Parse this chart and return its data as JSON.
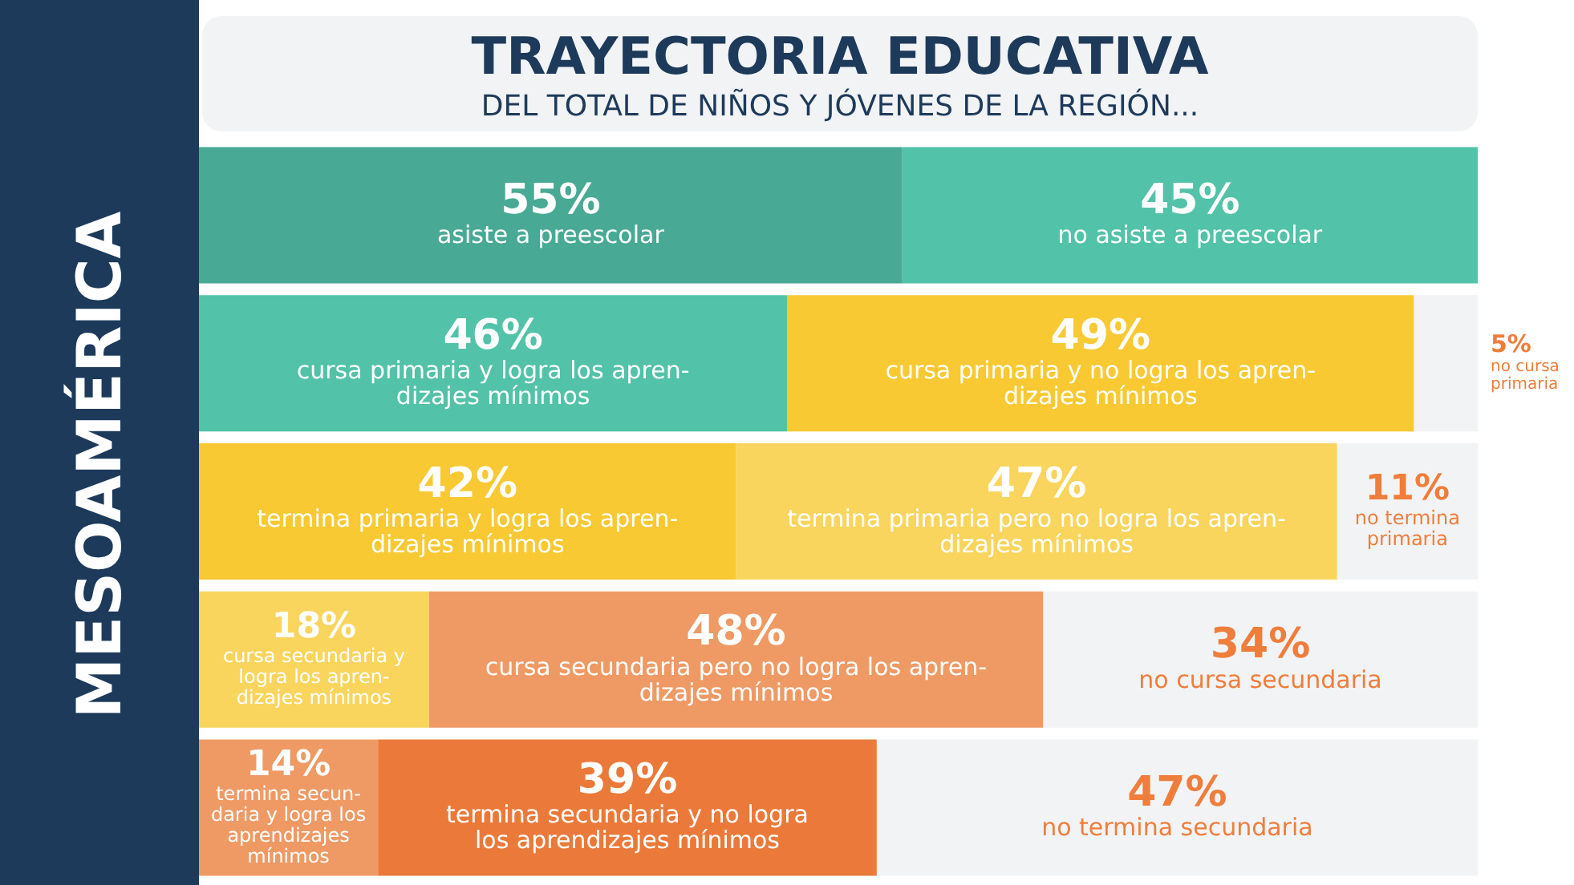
{
  "chart_data": {
    "type": "bar",
    "orientation": "horizontal",
    "stacked": true,
    "title": "TRAYECTORIA EDUCATIVA",
    "subtitle": "DEL TOTAL DE NIÑOS Y JÓVENES DE LA REGIÓN...",
    "ylabel": "MESOAMÉRICA",
    "categories": [
      null,
      null,
      null,
      null,
      null
    ],
    "legend": false,
    "tick_labels": false,
    "series": [
      {
        "colors": [
          "#48a994",
          "#52c2a8",
          "#f9c933",
          "#fad55e",
          "#ef9964"
        ],
        "values": [
          55,
          46,
          42,
          18,
          14
        ],
        "value_labels": [
          "55%\nasiste a preescolar",
          "46%\ncursa primaria y logra los apren-\ndizajes mínimos",
          "42%\ntermina primaria y logra los apren-\ndizajes mínimos",
          "18%\ncursa secundaria y\nlogra los apren-\ndizajes mínimos",
          "14%\ntermina secun-\ndaria y logra los\naprendizajes\nmínimos"
        ]
      },
      {
        "colors": [
          "#52c2a8",
          "#f9c933",
          "#fad55e",
          "#ef9964",
          "#eb7a3a"
        ],
        "values": [
          45,
          49,
          47,
          48,
          39
        ],
        "value_labels": [
          "45%\nno asiste a preescolar",
          "49%\ncursa primaria y no logra los apren-\ndizajes mínimos",
          "47%\ntermina primaria pero no logra los apren-\ndizajes mínimos",
          "48%\ncursa secundaria pero no logra los apren-\ndizajes mínimos",
          "39%\ntermina secundaria y no logra\nlos aprendizajes mínimos"
        ]
      },
      {
        "colors": [
          "#f2f3f5",
          "#f2f3f5",
          "#f2f3f5",
          "#f2f3f5",
          "#f2f3f5"
        ],
        "values": [
          null,
          5,
          11,
          34,
          47
        ],
        "value_labels": [
          null,
          "5%\nno cursa\nprimaria",
          "11%\nno termina\nprimaria",
          "34%\nno cursa secundaria",
          "47%\nno termina secundaria"
        ]
      }
    ]
  }
}
